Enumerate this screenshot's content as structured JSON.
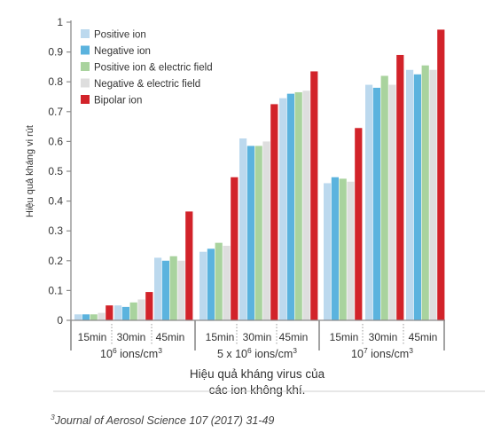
{
  "chart_data": {
    "type": "bar",
    "ylabel": "Hiệu quả kháng vi rút",
    "xlabel_lines": [
      "Hiệu quả kháng virus của",
      "các ion không khí."
    ],
    "ylim": [
      0,
      1
    ],
    "yticks": [
      "0",
      "0.1",
      "0.2",
      "0.3",
      "0.4",
      "0.5",
      "0.6",
      "0.7",
      "0.8",
      "0.9",
      "1"
    ],
    "legend_position": "top-left",
    "grid": false,
    "groups": [
      {
        "label": "10",
        "sup": "6",
        "suffix": " ions/cm",
        "sup2": "3"
      },
      {
        "label": "5 x 10",
        "sup": "6",
        "suffix": " ions/cm",
        "sup2": "3"
      },
      {
        "label": "10",
        "sup": "7",
        "suffix": " ions/cm",
        "sup2": "3"
      }
    ],
    "categories": [
      "15min",
      "30min",
      "45min",
      "15min",
      "30min",
      "45min",
      "15min",
      "30min",
      "45min"
    ],
    "series": [
      {
        "name": "Positive ion",
        "color": "#bcd9ee",
        "values": [
          0.02,
          0.05,
          0.21,
          0.23,
          0.61,
          0.745,
          0.46,
          0.79,
          0.84
        ]
      },
      {
        "name": "Negative ion",
        "color": "#5bb3de",
        "values": [
          0.02,
          0.045,
          0.2,
          0.24,
          0.585,
          0.76,
          0.48,
          0.78,
          0.825
        ]
      },
      {
        "name": "Positive ion & electric field",
        "color": "#a9d39e",
        "values": [
          0.02,
          0.06,
          0.215,
          0.26,
          0.585,
          0.765,
          0.475,
          0.82,
          0.855
        ]
      },
      {
        "name": "Negative & electric field",
        "color": "#dedede",
        "values": [
          0.025,
          0.07,
          0.2,
          0.25,
          0.6,
          0.77,
          0.465,
          0.79,
          0.84
        ]
      },
      {
        "name": "Bipolar ion",
        "color": "#d2232a",
        "values": [
          0.05,
          0.095,
          0.365,
          0.48,
          0.725,
          0.835,
          0.645,
          0.89,
          0.975
        ]
      }
    ]
  },
  "citation": {
    "marker": "3",
    "text": "Journal of Aerosol Science 107 (2017) 31-49"
  }
}
